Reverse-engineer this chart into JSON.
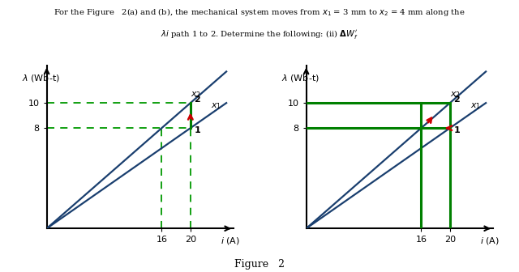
{
  "figure_label": "Figure   2",
  "ylabel": "λ (Wb-t)",
  "xlabel": "i (A)",
  "xlim": [
    0,
    26
  ],
  "ylim": [
    0,
    13
  ],
  "xticks": [
    16,
    20
  ],
  "yticks": [
    8,
    10
  ],
  "line_color_blue": "#1a3f6f",
  "line_color_green_solid": "#008000",
  "line_color_green_dashed": "#009900",
  "arrow_color": "#cc0000",
  "x1_slope": 0.4,
  "x2_slope": 0.5,
  "pt1_i": 20,
  "pt1_lam": 8,
  "pt2_i": 20,
  "pt2_lam": 10,
  "i16": 16,
  "lam_at_16_x1": 6.4,
  "lam_at_16_x2": 8.0,
  "line_extend_i": 25,
  "top_line1": "For the Figure   2(a) and (b), the mechanical system moves from x₁ = 3 mm to x₂ = 4 mm along the",
  "top_line2": "λi path 1 to 2. Determine the following: (ii) ΔW′ᵅ3"
}
